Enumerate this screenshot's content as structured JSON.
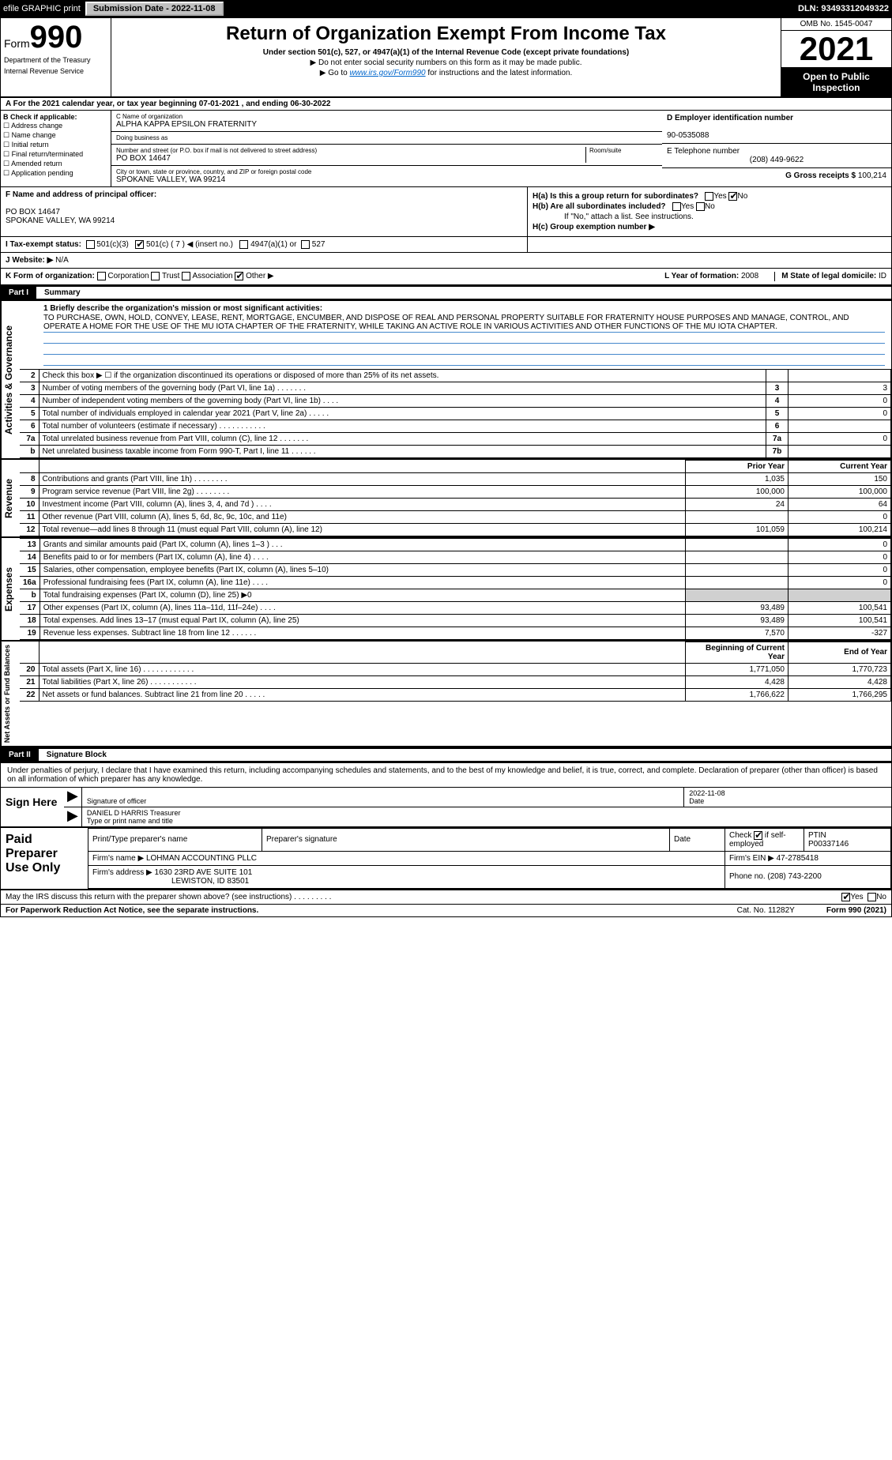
{
  "topbar": {
    "efile": "efile GRAPHIC print",
    "subdate_lbl": "Submission Date - 2022-11-08",
    "dln": "DLN: 93493312049322"
  },
  "header": {
    "form_word": "Form",
    "form_num": "990",
    "title": "Return of Organization Exempt From Income Tax",
    "sub": "Under section 501(c), 527, or 4947(a)(1) of the Internal Revenue Code (except private foundations)",
    "note": "▶ Do not enter social security numbers on this form as it may be made public.",
    "link_pre": "▶ Go to ",
    "link": "www.irs.gov/Form990",
    "link_post": " for instructions and the latest information.",
    "dept": "Department of the Treasury",
    "irs": "Internal Revenue Service",
    "omb": "OMB No. 1545-0047",
    "year": "2021",
    "inspect1": "Open to Public",
    "inspect2": "Inspection"
  },
  "row_a": "A For the 2021 calendar year, or tax year beginning 07-01-2021     , and ending 06-30-2022",
  "section_b": {
    "header": "B Check if applicable:",
    "opts": [
      "Address change",
      "Name change",
      "Initial return",
      "Final return/terminated",
      "Amended return",
      "Application pending"
    ]
  },
  "section_c": {
    "name_lbl": "C Name of organization",
    "name": "ALPHA KAPPA EPSILON FRATERNITY",
    "dba_lbl": "Doing business as",
    "dba": "",
    "addr_lbl": "Number and street (or P.O. box if mail is not delivered to street address)",
    "room_lbl": "Room/suite",
    "addr": "PO BOX 14647",
    "city_lbl": "City or town, state or province, country, and ZIP or foreign postal code",
    "city": "SPOKANE VALLEY, WA  99214"
  },
  "section_deg": {
    "d_lbl": "D Employer identification number",
    "d": "90-0535088",
    "e_lbl": "E Telephone number",
    "e": "(208) 449-9622",
    "g_lbl": "G Gross receipts $",
    "g": "100,214"
  },
  "section_f": {
    "lbl": "F Name and address of principal officer:",
    "line1": "PO BOX 14647",
    "line2": "SPOKANE VALLEY, WA  99214"
  },
  "section_h": {
    "a": "H(a)  Is this a group return for subordinates?",
    "b": "H(b)  Are all subordinates included?",
    "b_note": "If \"No,\" attach a list. See instructions.",
    "c": "H(c)  Group exemption number ▶",
    "yes": "Yes",
    "no": "No"
  },
  "row_i": {
    "lbl": "I  Tax-exempt status:",
    "o1": "501(c)(3)",
    "o2": "501(c) ( 7 ) ◀ (insert no.)",
    "o3": "4947(a)(1) or",
    "o4": "527"
  },
  "row_j": {
    "lbl": "J  Website: ▶",
    "val": "N/A"
  },
  "row_k": {
    "lbl": "K Form of organization:",
    "opts": [
      "Corporation",
      "Trust",
      "Association",
      "Other ▶"
    ]
  },
  "row_l": {
    "lbl": "L Year of formation:",
    "val": "2008"
  },
  "row_m": {
    "lbl": "M State of legal domicile:",
    "val": "ID"
  },
  "parts": {
    "p1": "Part I",
    "p1_title": "Summary",
    "p2": "Part II",
    "p2_title": "Signature Block"
  },
  "mission": {
    "q1": "1  Briefly describe the organization's mission or most significant activities:",
    "text": "TO PURCHASE, OWN, HOLD, CONVEY, LEASE, RENT, MORTGAGE, ENCUMBER, AND DISPOSE OF REAL AND PERSONAL PROPERTY SUITABLE FOR FRATERNITY HOUSE PURPOSES AND MANAGE, CONTROL, AND OPERATE A HOME FOR THE USE OF THE MU IOTA CHAPTER OF THE FRATERNITY, WHILE TAKING AN ACTIVE ROLE IN VARIOUS ACTIVITIES AND OTHER FUNCTIONS OF THE MU IOTA CHAPTER."
  },
  "gov_lines": [
    {
      "n": "2",
      "d": "Check this box ▶ ☐ if the organization discontinued its operations or disposed of more than 25% of its net assets.",
      "ln": "",
      "v": ""
    },
    {
      "n": "3",
      "d": "Number of voting members of the governing body (Part VI, line 1a)   .    .    .    .    .    .    .",
      "ln": "3",
      "v": "3"
    },
    {
      "n": "4",
      "d": "Number of independent voting members of the governing body (Part VI, line 1b)   .    .    .    .",
      "ln": "4",
      "v": "0"
    },
    {
      "n": "5",
      "d": "Total number of individuals employed in calendar year 2021 (Part V, line 2a)   .    .    .    .    .",
      "ln": "5",
      "v": "0"
    },
    {
      "n": "6",
      "d": "Total number of volunteers (estimate if necessary)   .    .    .    .    .    .    .    .    .    .    .",
      "ln": "6",
      "v": ""
    },
    {
      "n": "7a",
      "d": "Total unrelated business revenue from Part VIII, column (C), line 12   .    .    .    .    .    .    .",
      "ln": "7a",
      "v": "0"
    },
    {
      "n": "b",
      "d": "Net unrelated business taxable income from Form 990-T, Part I, line 11   .    .    .    .    .    .",
      "ln": "7b",
      "v": ""
    }
  ],
  "two_col_hdr": {
    "prior": "Prior Year",
    "curr": "Current Year"
  },
  "revenue": [
    {
      "n": "8",
      "d": "Contributions and grants (Part VIII, line 1h)   .    .    .    .    .    .    .    .",
      "p": "1,035",
      "c": "150"
    },
    {
      "n": "9",
      "d": "Program service revenue (Part VIII, line 2g)   .    .    .    .    .    .    .    .",
      "p": "100,000",
      "c": "100,000"
    },
    {
      "n": "10",
      "d": "Investment income (Part VIII, column (A), lines 3, 4, and 7d )   .    .    .    .",
      "p": "24",
      "c": "64"
    },
    {
      "n": "11",
      "d": "Other revenue (Part VIII, column (A), lines 5, 6d, 8c, 9c, 10c, and 11e)",
      "p": "",
      "c": "0"
    },
    {
      "n": "12",
      "d": "Total revenue—add lines 8 through 11 (must equal Part VIII, column (A), line 12)",
      "p": "101,059",
      "c": "100,214"
    }
  ],
  "expenses": [
    {
      "n": "13",
      "d": "Grants and similar amounts paid (Part IX, column (A), lines 1–3 )   .    .    .",
      "p": "",
      "c": "0"
    },
    {
      "n": "14",
      "d": "Benefits paid to or for members (Part IX, column (A), line 4)   .    .    .    .",
      "p": "",
      "c": "0"
    },
    {
      "n": "15",
      "d": "Salaries, other compensation, employee benefits (Part IX, column (A), lines 5–10)",
      "p": "",
      "c": "0"
    },
    {
      "n": "16a",
      "d": "Professional fundraising fees (Part IX, column (A), line 11e)   .    .    .    .",
      "p": "",
      "c": "0"
    },
    {
      "n": "b",
      "d": "Total fundraising expenses (Part IX, column (D), line 25) ▶0",
      "p": "shade",
      "c": "shade"
    },
    {
      "n": "17",
      "d": "Other expenses (Part IX, column (A), lines 11a–11d, 11f–24e)   .    .    .    .",
      "p": "93,489",
      "c": "100,541"
    },
    {
      "n": "18",
      "d": "Total expenses. Add lines 13–17 (must equal Part IX, column (A), line 25)",
      "p": "93,489",
      "c": "100,541"
    },
    {
      "n": "19",
      "d": "Revenue less expenses. Subtract line 18 from line 12   .    .    .    .    .    .",
      "p": "7,570",
      "c": "-327"
    }
  ],
  "net_hdr": {
    "b": "Beginning of Current Year",
    "e": "End of Year"
  },
  "net": [
    {
      "n": "20",
      "d": "Total assets (Part X, line 16)   .    .    .    .    .    .    .    .    .    .    .    .",
      "p": "1,771,050",
      "c": "1,770,723"
    },
    {
      "n": "21",
      "d": "Total liabilities (Part X, line 26)   .    .    .    .    .    .    .    .    .    .    .",
      "p": "4,428",
      "c": "4,428"
    },
    {
      "n": "22",
      "d": "Net assets or fund balances. Subtract line 21 from line 20   .    .    .    .    .",
      "p": "1,766,622",
      "c": "1,766,295"
    }
  ],
  "side_labels": {
    "gov": "Activities & Governance",
    "rev": "Revenue",
    "exp": "Expenses",
    "net": "Net Assets or Fund Balances"
  },
  "sig": {
    "decl": "Under penalties of perjury, I declare that I have examined this return, including accompanying schedules and statements, and to the best of my knowledge and belief, it is true, correct, and complete. Declaration of preparer (other than officer) is based on all information of which preparer has any knowledge.",
    "sign_here": "Sign Here",
    "sig_officer": "Signature of officer",
    "date": "Date",
    "date_val": "2022-11-08",
    "name": "DANIEL D HARRIS  Treasurer",
    "name_lbl": "Type or print name and title"
  },
  "prep": {
    "title": "Paid Preparer Use Only",
    "h1": "Print/Type preparer's name",
    "h2": "Preparer's signature",
    "h3": "Date",
    "h4_a": "Check",
    "h4_b": "if self-employed",
    "h5": "PTIN",
    "ptin": "P00337146",
    "firm_lbl": "Firm's name     ▶",
    "firm": "LOHMAN ACCOUNTING PLLC",
    "ein_lbl": "Firm's EIN ▶",
    "ein": "47-2785418",
    "addr_lbl": "Firm's address ▶",
    "addr1": "1630 23RD AVE SUITE 101",
    "addr2": "LEWISTON, ID  83501",
    "phone_lbl": "Phone no.",
    "phone": "(208) 743-2200"
  },
  "discuss": {
    "q": "May the IRS discuss this return with the preparer shown above? (see instructions)   .    .    .    .    .    .    .    .    .",
    "yes": "Yes",
    "no": "No"
  },
  "footer": {
    "pra": "For Paperwork Reduction Act Notice, see the separate instructions.",
    "cat": "Cat. No. 11282Y",
    "form": "Form 990 (2021)"
  }
}
